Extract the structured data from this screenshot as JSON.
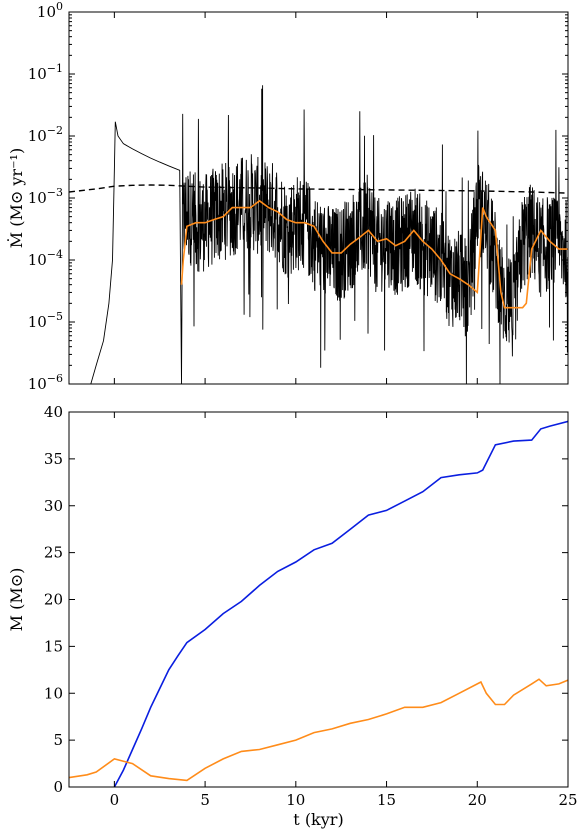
{
  "chart_data": [
    {
      "type": "line",
      "title": "",
      "xlabel": "",
      "ylabel": "Ṁ (M⊙ yr⁻¹)",
      "yscale": "log",
      "xlim": [
        -2.5,
        25
      ],
      "ylim": [
        1e-06,
        1
      ],
      "ytick_values": [
        1e-06,
        1e-05,
        0.0001,
        0.001,
        0.01,
        0.1,
        1
      ],
      "ytick_labels": [
        {
          "base": "10",
          "exp": "−6"
        },
        {
          "base": "10",
          "exp": "−5"
        },
        {
          "base": "10",
          "exp": "−4"
        },
        {
          "base": "10",
          "exp": "−3"
        },
        {
          "base": "10",
          "exp": "−2"
        },
        {
          "base": "10",
          "exp": "−1"
        },
        {
          "base": "10",
          "exp": "0"
        }
      ],
      "xtick_values": [
        0,
        5,
        10,
        15,
        20,
        25
      ],
      "xtick_labels_shown": false,
      "grid": false,
      "series": [
        {
          "style": "black-solid-noisy",
          "color": "#000000",
          "x": [
            -1.3,
            -1.0,
            -0.6,
            -0.3,
            -0.1,
            0.0,
            0.05,
            0.2,
            0.5,
            1.0,
            1.5,
            2.0,
            2.5,
            3.0,
            3.6,
            3.7,
            3.75,
            4.0,
            4.5,
            5.0,
            5.5,
            6.0,
            6.5,
            7.0,
            7.5,
            8.0,
            8.5,
            9.0,
            9.5,
            10.0,
            10.5,
            11.0,
            11.5,
            12.0,
            12.5,
            13.0,
            13.5,
            14.0,
            14.5,
            15.0,
            15.5,
            16.0,
            16.5,
            17.0,
            17.5,
            18.0,
            18.5,
            19.0,
            19.5,
            20.0,
            20.5,
            21.0,
            21.5,
            22.0,
            22.5,
            23.0,
            23.5,
            24.0,
            24.5,
            25.0
          ],
          "y": [
            1e-06,
            2e-06,
            5e-06,
            2e-05,
            0.0001,
            0.003,
            0.017,
            0.01,
            0.0075,
            0.0062,
            0.0052,
            0.0044,
            0.0038,
            0.0033,
            0.0028,
            1e-06,
            0.0004,
            0.0006,
            0.0004,
            0.0004,
            0.0005,
            0.0006,
            0.0007,
            0.0008,
            0.0009,
            0.0007,
            0.0007,
            0.0006,
            0.0003,
            0.0004,
            0.0004,
            0.0002,
            0.00015,
            0.00012,
            0.00013,
            0.0002,
            0.00026,
            0.0004,
            0.00015,
            0.00025,
            0.00016,
            0.00019,
            0.0003,
            0.00016,
            0.00015,
            0.0001,
            5e-05,
            5e-05,
            3e-05,
            0.0007,
            0.0004,
            0.0001,
            2e-05,
            1.7e-05,
            0.0002,
            0.0003,
            0.00015,
            0.0002,
            0.00015,
            0.00015
          ]
        },
        {
          "style": "black-dashed",
          "color": "#000000",
          "x": [
            -2.5,
            -1.0,
            0.0,
            1.0,
            2.0,
            3.0,
            4.0,
            5.0,
            8.0,
            10.0,
            15.0,
            20.0,
            23.0,
            25.0
          ],
          "y": [
            0.00125,
            0.0014,
            0.00155,
            0.0016,
            0.00162,
            0.0016,
            0.00155,
            0.0015,
            0.00145,
            0.0014,
            0.00135,
            0.0013,
            0.00125,
            0.0012
          ]
        },
        {
          "style": "orange-solid",
          "color": "#ff8c1a",
          "x": [
            3.7,
            3.8,
            4.0,
            4.5,
            5.0,
            5.5,
            6.0,
            6.5,
            7.0,
            7.5,
            8.0,
            8.5,
            9.0,
            9.5,
            10.0,
            10.5,
            11.0,
            11.5,
            12.0,
            12.5,
            13.0,
            13.5,
            14.0,
            14.5,
            15.0,
            15.5,
            16.0,
            16.5,
            17.0,
            17.5,
            18.0,
            18.5,
            19.0,
            19.5,
            20.0,
            20.3,
            20.5,
            21.0,
            21.3,
            21.5,
            22.0,
            22.5,
            22.7,
            23.0,
            23.5,
            24.0,
            24.5,
            25.0
          ],
          "y": [
            4e-05,
            0.0001,
            0.00035,
            0.0004,
            0.0004,
            0.00045,
            0.0005,
            0.0007,
            0.0007,
            0.0007,
            0.0009,
            0.0007,
            0.0006,
            0.00045,
            0.0004,
            0.0004,
            0.00035,
            0.0002,
            0.00013,
            0.00013,
            0.00018,
            0.00023,
            0.0003,
            0.0002,
            0.00022,
            0.00017,
            0.0002,
            0.0003,
            0.0002,
            0.00015,
            0.0001,
            6e-05,
            5e-05,
            4e-05,
            3e-05,
            0.0007,
            0.0005,
            0.0003,
            3e-05,
            1.7e-05,
            1.7e-05,
            1.7e-05,
            2e-05,
            0.00015,
            0.0003,
            0.0002,
            0.00015,
            0.00015
          ]
        }
      ]
    },
    {
      "type": "line",
      "title": "",
      "xlabel": "t (kyr)",
      "ylabel": "M (M⊙)",
      "xlim": [
        -2.5,
        25
      ],
      "ylim": [
        0,
        40
      ],
      "xtick_values": [
        0,
        5,
        10,
        15,
        20,
        25
      ],
      "xtick_labels": [
        "0",
        "5",
        "10",
        "15",
        "20",
        "25"
      ],
      "ytick_values": [
        0,
        5,
        10,
        15,
        20,
        25,
        30,
        35,
        40
      ],
      "ytick_labels": [
        "0",
        "5",
        "10",
        "15",
        "20",
        "25",
        "30",
        "35",
        "40"
      ],
      "grid": false,
      "series": [
        {
          "color": "#0a1ee0",
          "x": [
            0.0,
            0.5,
            1.0,
            1.5,
            2.0,
            2.5,
            3.0,
            3.5,
            4.0,
            5.0,
            6.0,
            7.0,
            8.0,
            9.0,
            10.0,
            11.0,
            12.0,
            13.0,
            14.0,
            15.0,
            16.0,
            17.0,
            18.0,
            19.0,
            20.0,
            20.3,
            21.0,
            22.0,
            23.0,
            23.5,
            24.0,
            25.0
          ],
          "y": [
            0.0,
            1.8,
            4.0,
            6.2,
            8.5,
            10.5,
            12.5,
            14.0,
            15.4,
            16.8,
            18.5,
            19.8,
            21.5,
            23.0,
            24.0,
            25.3,
            26.0,
            27.5,
            29.0,
            29.5,
            30.5,
            31.5,
            33.0,
            33.3,
            33.5,
            33.8,
            36.5,
            36.9,
            37.0,
            38.2,
            38.5,
            39.0
          ]
        },
        {
          "color": "#ff8c1a",
          "x": [
            -2.5,
            -1.5,
            -1.0,
            0.0,
            1.0,
            2.0,
            3.0,
            4.0,
            5.0,
            6.0,
            7.0,
            8.0,
            9.0,
            10.0,
            11.0,
            12.0,
            13.0,
            14.0,
            15.0,
            16.0,
            17.0,
            18.0,
            19.0,
            20.2,
            20.5,
            21.0,
            21.5,
            22.0,
            23.0,
            23.4,
            23.8,
            24.5,
            25.0
          ],
          "y": [
            1.0,
            1.3,
            1.6,
            3.0,
            2.5,
            1.2,
            0.9,
            0.7,
            2.0,
            3.0,
            3.8,
            4.0,
            4.5,
            5.0,
            5.8,
            6.2,
            6.8,
            7.2,
            7.8,
            8.5,
            8.5,
            9.0,
            10.0,
            11.2,
            10.0,
            8.8,
            8.8,
            9.8,
            11.0,
            11.5,
            10.8,
            11.0,
            11.4
          ]
        }
      ]
    }
  ]
}
